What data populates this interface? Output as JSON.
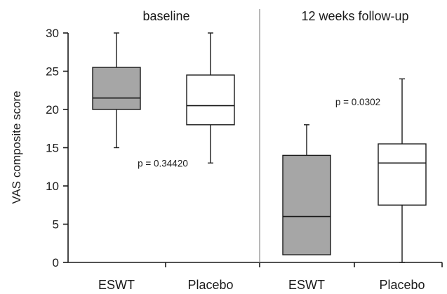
{
  "chart_data": {
    "type": "box",
    "ylabel": "VAS composite score",
    "ylim": [
      0,
      30
    ],
    "yticks": [
      0,
      5,
      10,
      15,
      20,
      25,
      30
    ],
    "panels": [
      "baseline",
      "12 weeks follow-up"
    ],
    "categories": [
      "ESWT",
      "Placebo",
      "ESWT",
      "Placebo"
    ],
    "boxes": [
      {
        "panel": "baseline",
        "group": "ESWT",
        "fill": "#a6a6a6",
        "min": 15,
        "q1": 20,
        "median": 21.5,
        "q3": 25.5,
        "max": 30
      },
      {
        "panel": "baseline",
        "group": "Placebo",
        "fill": "#ffffff",
        "min": 13,
        "q1": 18,
        "median": 20.5,
        "q3": 24.5,
        "max": 30
      },
      {
        "panel": "12 weeks follow-up",
        "group": "ESWT",
        "fill": "#a6a6a6",
        "min": 1,
        "q1": 1,
        "median": 6,
        "q3": 14,
        "max": 18
      },
      {
        "panel": "12 weeks follow-up",
        "group": "Placebo",
        "fill": "#ffffff",
        "min": 0,
        "q1": 7.5,
        "median": 13,
        "q3": 15.5,
        "max": 24
      }
    ],
    "annotations": [
      {
        "text": "p = 0.34420",
        "panel": "baseline",
        "y": 13
      },
      {
        "text": "p = 0.0302",
        "panel": "12 weeks follow-up",
        "y": 21
      }
    ],
    "grid": false,
    "legend": "none"
  }
}
